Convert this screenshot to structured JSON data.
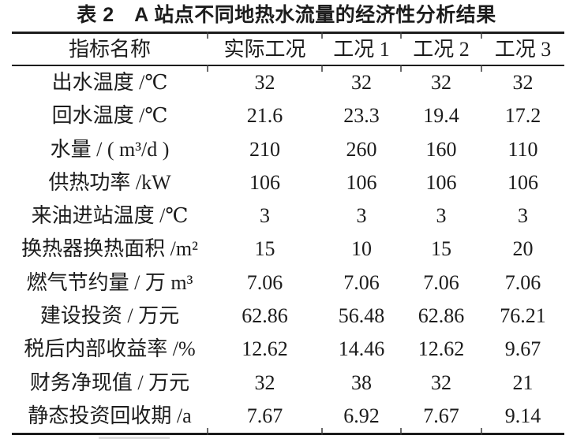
{
  "page": {
    "background": "#ffffff",
    "text_color": "#1c1c1c",
    "rule_color": "#1c1c1c"
  },
  "caption": "表 2　A 站点不同地热水流量的经济性分析结果",
  "table": {
    "headers": [
      "指标名称",
      "实际工况",
      "工况 1",
      "工况 2",
      "工况 3"
    ],
    "rows": [
      {
        "label": "出水温度 /℃",
        "values": [
          "32",
          "32",
          "32",
          "32"
        ]
      },
      {
        "label": "回水温度 /℃",
        "values": [
          "21.6",
          "23.3",
          "19.4",
          "17.2"
        ]
      },
      {
        "label": "水量 / ( m³/d )",
        "values": [
          "210",
          "260",
          "160",
          "110"
        ]
      },
      {
        "label": "供热功率 /kW",
        "values": [
          "106",
          "106",
          "106",
          "106"
        ]
      },
      {
        "label": "来油进站温度 /℃",
        "values": [
          "3",
          "3",
          "3",
          "3"
        ]
      },
      {
        "label": "换热器换热面积 /m²",
        "values": [
          "15",
          "10",
          "15",
          "20"
        ]
      },
      {
        "label": "燃气节约量 / 万 m³",
        "values": [
          "7.06",
          "7.06",
          "7.06",
          "7.06"
        ]
      },
      {
        "label": "建设投资 / 万元",
        "values": [
          "62.86",
          "56.48",
          "62.86",
          "76.21"
        ]
      },
      {
        "label": "税后内部收益率 /%",
        "values": [
          "12.62",
          "14.46",
          "12.62",
          "9.67"
        ]
      },
      {
        "label": "财务净现值 / 万元",
        "values": [
          "32",
          "38",
          "32",
          "21"
        ]
      },
      {
        "label": "静态投资回收期 /a",
        "values": [
          "7.67",
          "6.92",
          "7.67",
          "9.14"
        ]
      }
    ]
  },
  "chart_data": {
    "type": "table",
    "title": "表 2　A 站点不同地热水流量的经济性分析结果",
    "columns": [
      "指标名称",
      "实际工况",
      "工况 1",
      "工况 2",
      "工况 3"
    ],
    "rows": [
      [
        "出水温度 /℃",
        32,
        32,
        32,
        32
      ],
      [
        "回水温度 /℃",
        21.6,
        23.3,
        19.4,
        17.2
      ],
      [
        "水量 / ( m³/d )",
        210,
        260,
        160,
        110
      ],
      [
        "供热功率 /kW",
        106,
        106,
        106,
        106
      ],
      [
        "来油进站温度 /℃",
        3,
        3,
        3,
        3
      ],
      [
        "换热器换热面积 /m²",
        15,
        10,
        15,
        20
      ],
      [
        "燃气节约量 / 万 m³",
        7.06,
        7.06,
        7.06,
        7.06
      ],
      [
        "建设投资 / 万元",
        62.86,
        56.48,
        62.86,
        76.21
      ],
      [
        "税后内部收益率 /%",
        12.62,
        14.46,
        12.62,
        9.67
      ],
      [
        "财务净现值 / 万元",
        32,
        38,
        32,
        21
      ],
      [
        "静态投资回收期 /a",
        7.67,
        6.92,
        7.67,
        9.14
      ]
    ]
  }
}
